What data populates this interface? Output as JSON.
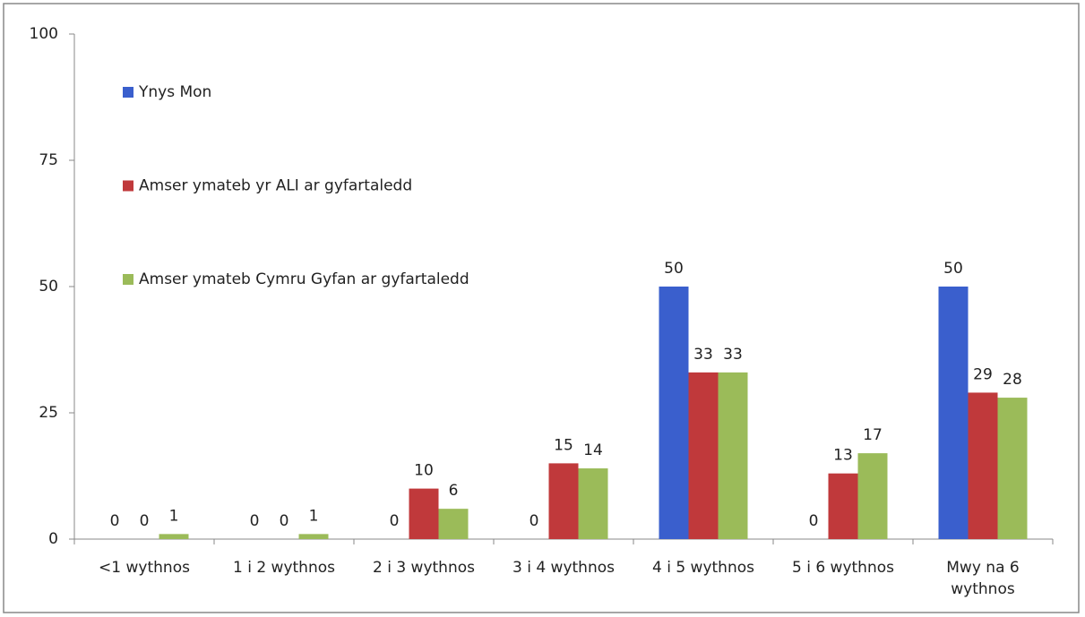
{
  "chart_data": {
    "type": "bar",
    "categories": [
      "<1 wythnos",
      "1 i 2 wythnos",
      "2 i 3 wythnos",
      "3 i 4 wythnos",
      "4 i 5 wythnos",
      "5 i 6 wythnos",
      "Mwy na 6 wythnos"
    ],
    "series": [
      {
        "name": "Ynys Mon",
        "color": "#3a5fcd",
        "values": [
          0,
          0,
          0,
          0,
          50,
          0,
          50
        ]
      },
      {
        "name": "Amser ymateb yr ALI ar gyfartaledd",
        "color": "#c0393b",
        "values": [
          0,
          0,
          10,
          15,
          33,
          13,
          29
        ]
      },
      {
        "name": "Amser ymateb Cymru Gyfan ar gyfartaledd",
        "color": "#9bbb59",
        "values": [
          1,
          1,
          6,
          14,
          33,
          17,
          28
        ]
      }
    ],
    "ylim": [
      0,
      100
    ],
    "yticks": [
      0,
      25,
      50,
      75,
      100
    ],
    "grid": false,
    "legend": "top-left"
  }
}
